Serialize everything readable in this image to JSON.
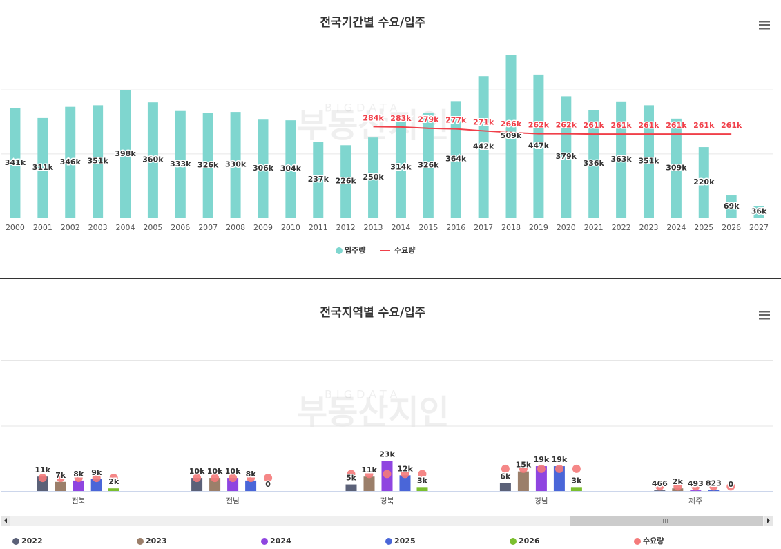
{
  "watermark": {
    "top": "BIGDATA",
    "main": "부동산지인"
  },
  "chart_data": [
    {
      "type": "bar",
      "title": "전국기간별 수요/입주",
      "categories": [
        "2000",
        "2001",
        "2002",
        "2003",
        "2004",
        "2005",
        "2006",
        "2007",
        "2008",
        "2009",
        "2010",
        "2011",
        "2012",
        "2013",
        "2014",
        "2015",
        "2016",
        "2017",
        "2018",
        "2019",
        "2020",
        "2021",
        "2022",
        "2023",
        "2024",
        "2025",
        "2026",
        "2027"
      ],
      "series": [
        {
          "name": "입주량",
          "type": "bar",
          "color": "#7fd6cf",
          "values": [
            341000,
            311000,
            346000,
            351000,
            398000,
            360000,
            333000,
            326000,
            330000,
            306000,
            304000,
            237000,
            226000,
            250000,
            314000,
            326000,
            364000,
            442000,
            509000,
            447000,
            379000,
            336000,
            363000,
            351000,
            309000,
            220000,
            69000,
            36000
          ],
          "value_labels": [
            "341k",
            "311k",
            "346k",
            "351k",
            "398k",
            "360k",
            "333k",
            "326k",
            "330k",
            "306k",
            "304k",
            "237k",
            "226k",
            "250k",
            "314k",
            "326k",
            "364k",
            "442k",
            "509k",
            "447k",
            "379k",
            "336k",
            "363k",
            "351k",
            "309k",
            "220k",
            "69k",
            "36k"
          ]
        },
        {
          "name": "수요량",
          "type": "line",
          "color": "#f0404a",
          "values": [
            null,
            null,
            null,
            null,
            null,
            null,
            null,
            null,
            null,
            null,
            null,
            null,
            null,
            284000,
            283000,
            279000,
            277000,
            271000,
            266000,
            262000,
            262000,
            261000,
            261000,
            261000,
            261000,
            261000,
            261000,
            null
          ],
          "value_labels": [
            null,
            null,
            null,
            null,
            null,
            null,
            null,
            null,
            null,
            null,
            null,
            null,
            null,
            "284k",
            "283k",
            "279k",
            "277k",
            "271k",
            "266k",
            "262k",
            "262k",
            "261k",
            "261k",
            "261k",
            "261k",
            "261k",
            "261k",
            null
          ]
        }
      ],
      "ylim": [
        0,
        600000
      ],
      "yticks": [
        0,
        200000,
        400000
      ],
      "grid": true,
      "legend": "bottom"
    },
    {
      "type": "bar",
      "title": "전국지역별 수요/입주",
      "categories": [
        "전북",
        "전남",
        "경북",
        "경남",
        "제주"
      ],
      "series": [
        {
          "name": "2022",
          "type": "bar",
          "color": "#5b6178",
          "values": [
            11000,
            10000,
            5000,
            6000,
            466
          ],
          "value_labels": [
            "11k",
            "10k",
            "5k",
            "6k",
            "466"
          ]
        },
        {
          "name": "2023",
          "type": "bar",
          "color": "#9b7f6a",
          "values": [
            7000,
            10000,
            11000,
            15000,
            2000
          ],
          "value_labels": [
            "7k",
            "10k",
            "11k",
            "15k",
            "2k"
          ]
        },
        {
          "name": "2024",
          "type": "bar",
          "color": "#8f45e0",
          "values": [
            8000,
            10000,
            23000,
            19000,
            493
          ],
          "value_labels": [
            "8k",
            "10k",
            "23k",
            "19k",
            "493"
          ]
        },
        {
          "name": "2025",
          "type": "bar",
          "color": "#4a66d8",
          "values": [
            9000,
            8000,
            12000,
            19000,
            823
          ],
          "value_labels": [
            "9k",
            "8k",
            "12k",
            "19k",
            "823"
          ]
        },
        {
          "name": "2026",
          "type": "bar",
          "color": "#7bbf2e",
          "values": [
            2000,
            0,
            3000,
            3000,
            0
          ],
          "value_labels": [
            "2k",
            "0",
            "3k",
            "3k",
            "0"
          ]
        },
        {
          "name": "수요량",
          "type": "scatter",
          "color": "#f47a7a",
          "values": [
            [
              10000,
              10000,
              10000,
              10000,
              10000
            ],
            [
              10000,
              10000,
              10000,
              10000,
              10000
            ],
            [
              13000,
              13000,
              13000,
              13000,
              13000
            ],
            [
              17000,
              17000,
              17000,
              17000,
              17000
            ],
            [
              3500,
              3500,
              3500,
              3500,
              3500
            ]
          ]
        }
      ],
      "ylim": [
        0,
        100000
      ],
      "yticks": [
        0,
        50000,
        100000
      ],
      "grid": true,
      "legend": "bottom"
    }
  ]
}
